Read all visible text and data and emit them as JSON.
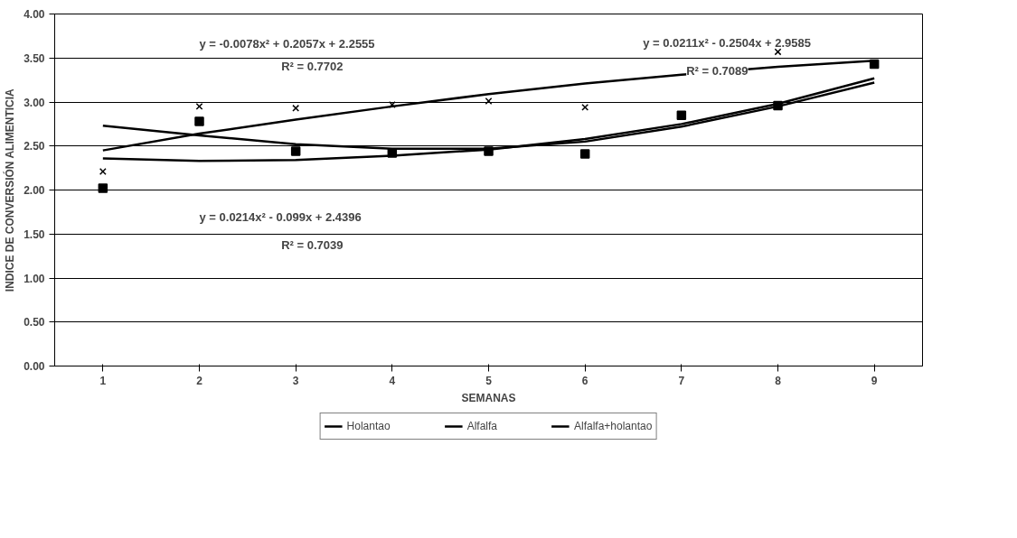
{
  "chart_data": {
    "type": "scatter",
    "xlabel": "SEMANAS",
    "ylabel": "INDICE DE CONVERSIÓN ALIMENTICIA",
    "x": [
      1,
      2,
      3,
      4,
      5,
      6,
      7,
      8,
      9
    ],
    "series": [
      {
        "marker": "cross",
        "color": "#000000",
        "values": [
          2.21,
          2.95,
          2.93,
          2.97,
          3.01,
          2.94,
          null,
          3.57,
          null
        ]
      },
      {
        "marker": "square",
        "color": "#000000",
        "values": [
          2.02,
          2.78,
          2.44,
          2.42,
          2.44,
          2.41,
          2.85,
          2.96,
          3.43
        ]
      },
      {
        "type": "line",
        "name": "Holantao",
        "color": "#000000",
        "values": [
          2.45,
          2.64,
          2.8,
          2.95,
          3.09,
          3.21,
          3.31,
          3.4,
          3.47
        ]
      },
      {
        "type": "line",
        "name": "Alfalfa",
        "color": "#000000",
        "values": [
          2.73,
          2.62,
          2.52,
          2.47,
          2.47,
          2.55,
          2.72,
          2.95,
          3.22
        ]
      },
      {
        "type": "line",
        "name": "Alfalfa+holantao",
        "color": "#000000",
        "values": [
          2.36,
          2.33,
          2.34,
          2.39,
          2.46,
          2.58,
          2.75,
          2.98,
          3.27
        ]
      }
    ],
    "annotations": [
      "y = -0.0078x² + 0.2057x + 2.2555",
      "R² = 0.7702",
      "y = 0.0211x² - 0.2504x + 2.9585",
      "R² = 0.7089",
      "y = 0.0214x² - 0.099x + 2.4396",
      "R² = 0.7039"
    ],
    "xlim": [
      0.5,
      9.5
    ],
    "xticks": [
      1,
      2,
      3,
      4,
      5,
      6,
      7,
      8,
      9
    ],
    "ylim": [
      0,
      4
    ],
    "yticks": [
      {
        "value": 0,
        "label": "0.00"
      },
      {
        "value": 0.5,
        "label": "0.50"
      },
      {
        "value": 1,
        "label": "1.00"
      },
      {
        "value": 1.5,
        "label": "1.50"
      },
      {
        "value": 2,
        "label": "2.00"
      },
      {
        "value": 2.5,
        "label": "2.50"
      },
      {
        "value": 3,
        "label": "3.00"
      },
      {
        "value": 3.5,
        "label": "3.50"
      },
      {
        "value": 4,
        "label": "4.00"
      }
    ],
    "grid": "y",
    "legend": "bottom"
  }
}
